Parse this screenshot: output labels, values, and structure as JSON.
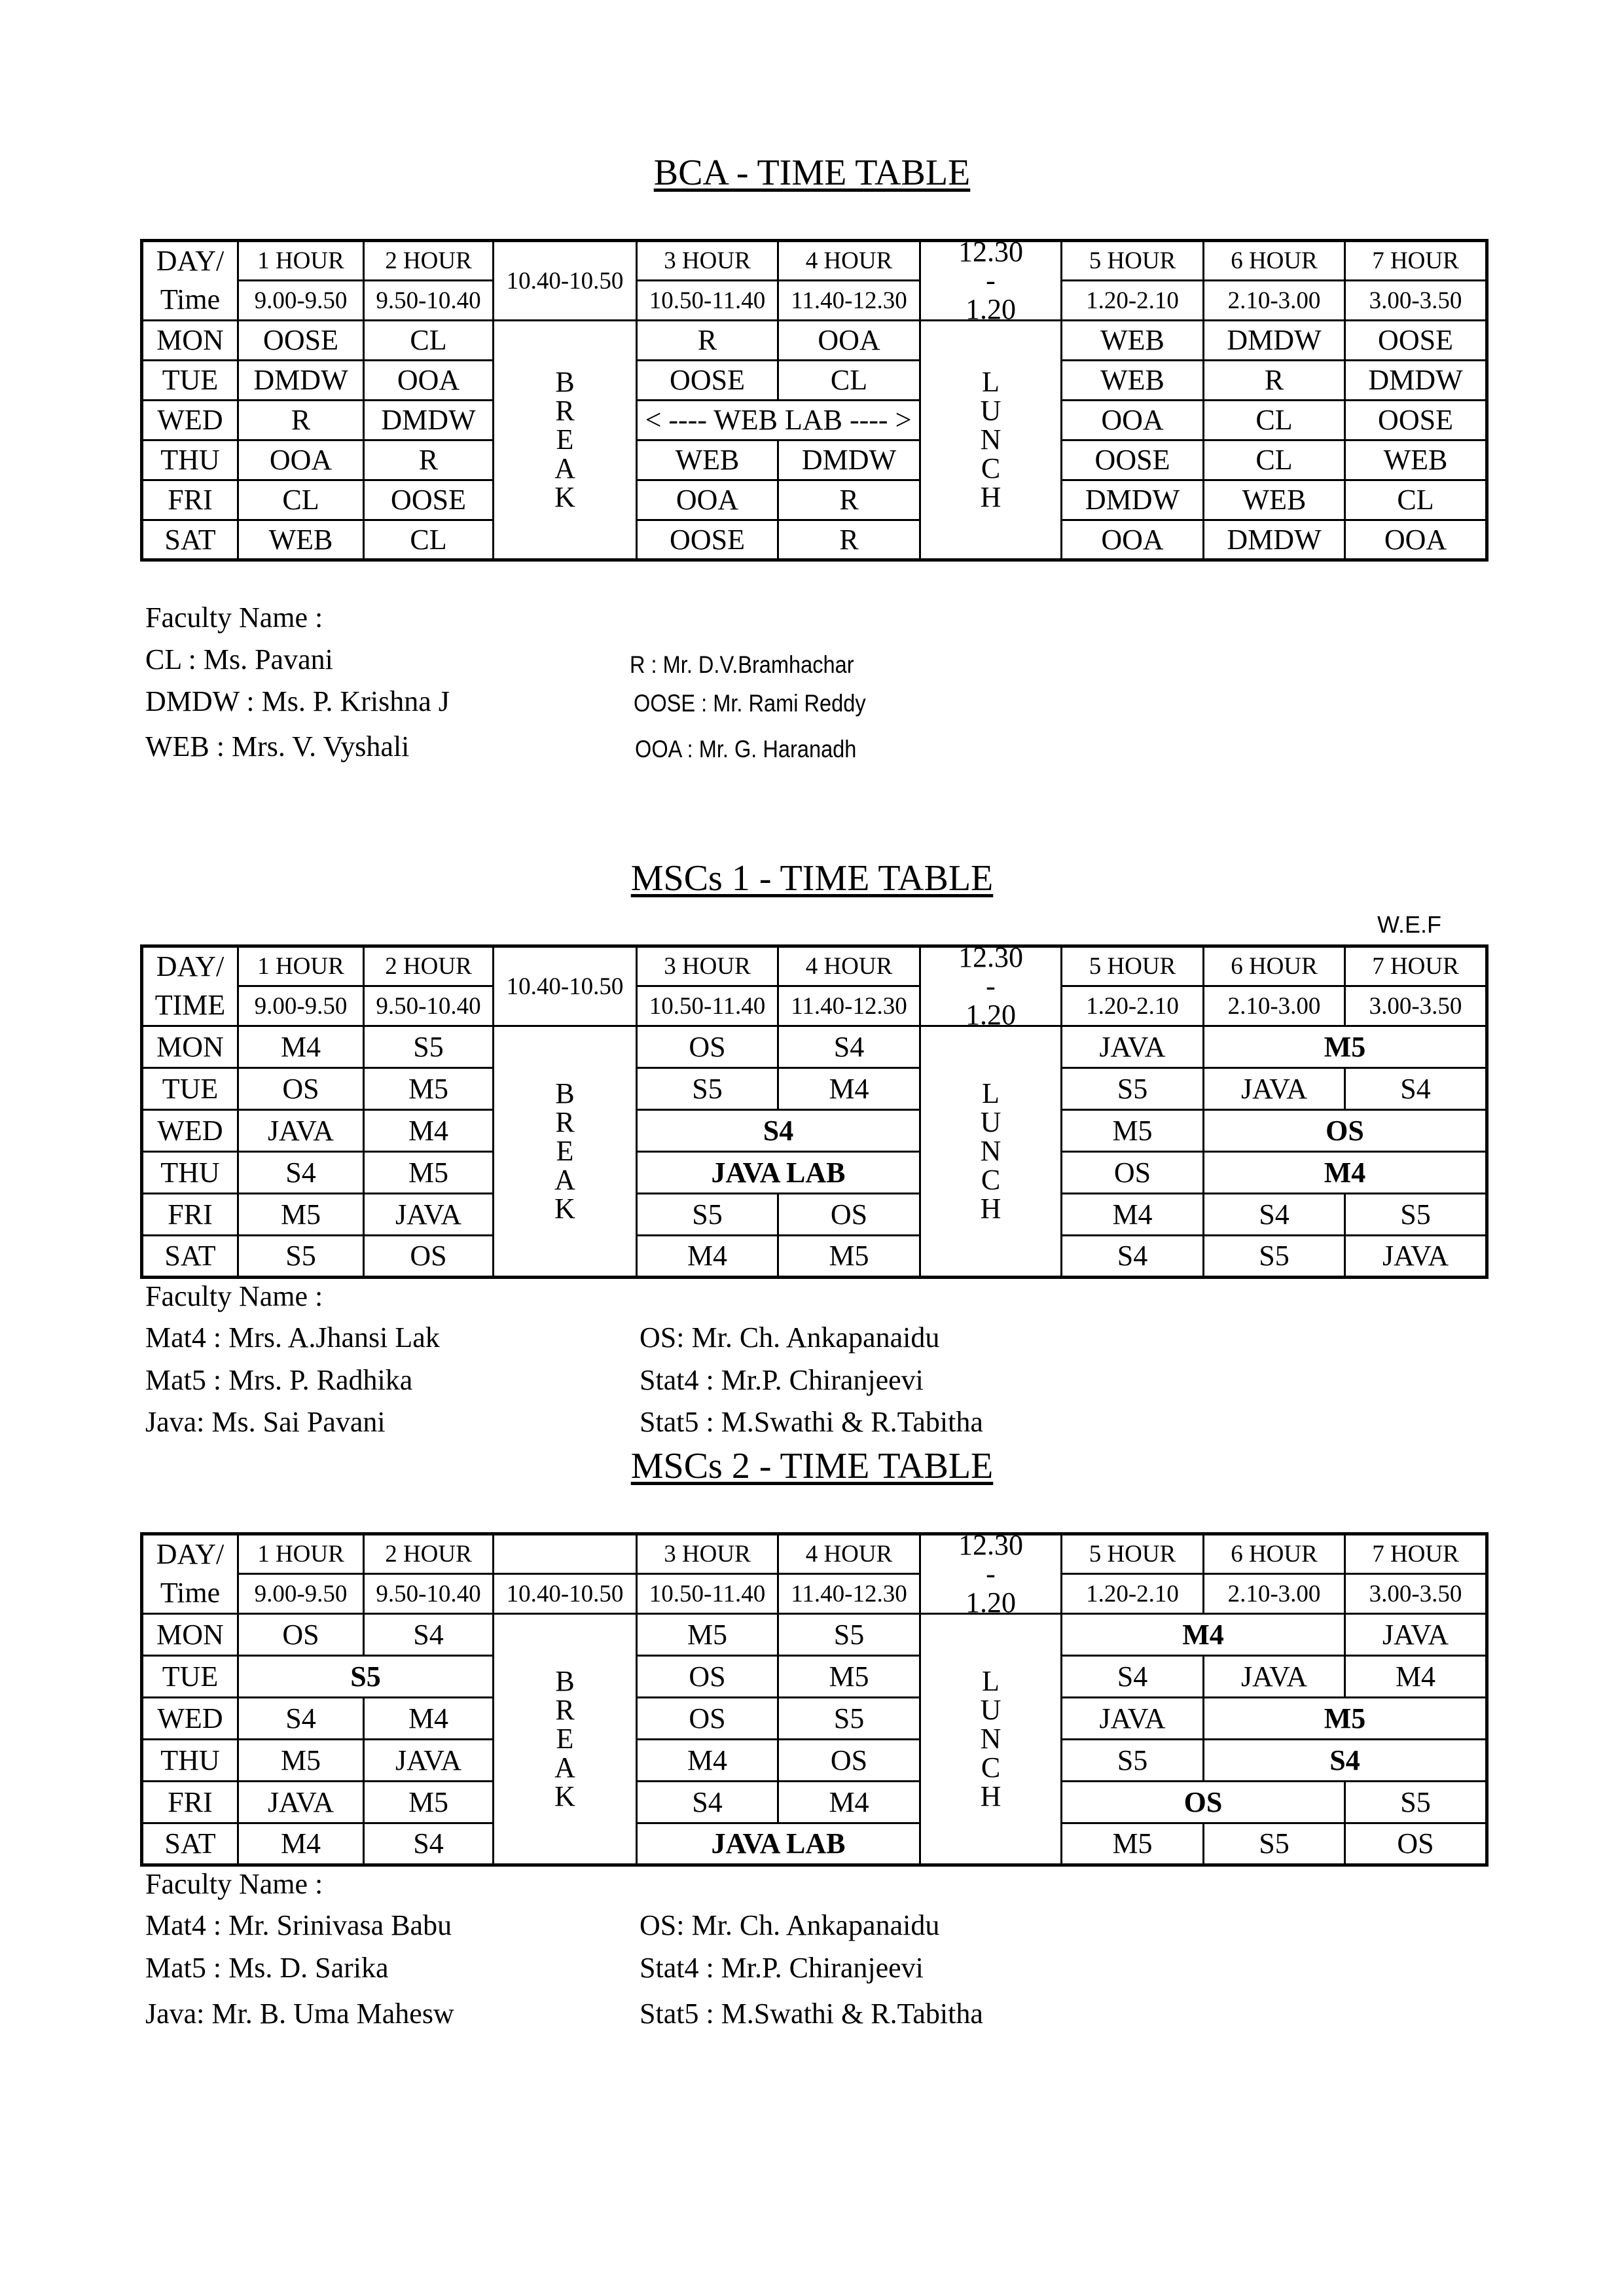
{
  "bca": {
    "title": "BCA - TIME TABLE",
    "header": {
      "day": "DAY/",
      "time": "Time",
      "hours": [
        "1 HOUR",
        "2 HOUR",
        "3 HOUR",
        "4 HOUR",
        "5 HOUR",
        "6 HOUR",
        "7 HOUR"
      ],
      "times": [
        "9.00-9.50",
        "9.50-10.40",
        "10.50-11.40",
        "11.40-12.30",
        "1.20-2.10",
        "2.10-3.00",
        "3.00-3.50"
      ],
      "break_time": "10.40-10.50",
      "lunch_time": [
        "12.30",
        "-",
        "1.20"
      ]
    },
    "break_letters": [
      "B",
      "R",
      "E",
      "A",
      "K"
    ],
    "lunch_letters": [
      "L",
      "U",
      "N",
      "C",
      "H"
    ],
    "rows": [
      {
        "day": "MON",
        "cells": [
          {
            "t": "OOSE"
          },
          {
            "t": "CL"
          },
          {
            "t": "R"
          },
          {
            "t": "OOA"
          },
          {
            "t": "WEB"
          },
          {
            "t": "DMDW"
          },
          {
            "t": "OOSE"
          }
        ]
      },
      {
        "day": "TUE",
        "cells": [
          {
            "t": "DMDW"
          },
          {
            "t": "OOA"
          },
          {
            "t": "OOSE"
          },
          {
            "t": "CL"
          },
          {
            "t": "WEB"
          },
          {
            "t": "R"
          },
          {
            "t": "DMDW"
          }
        ]
      },
      {
        "day": "WED",
        "cells": [
          {
            "t": "R"
          },
          {
            "t": "DMDW"
          },
          {
            "t": "< ---- WEB LAB ---- >",
            "span": 2
          },
          {
            "t": "OOA"
          },
          {
            "t": "CL"
          },
          {
            "t": "OOSE"
          }
        ]
      },
      {
        "day": "THU",
        "cells": [
          {
            "t": "OOA"
          },
          {
            "t": "R"
          },
          {
            "t": "WEB"
          },
          {
            "t": "DMDW"
          },
          {
            "t": "OOSE"
          },
          {
            "t": "CL"
          },
          {
            "t": "WEB"
          }
        ]
      },
      {
        "day": "FRI",
        "cells": [
          {
            "t": "CL"
          },
          {
            "t": "OOSE"
          },
          {
            "t": "OOA"
          },
          {
            "t": "R"
          },
          {
            "t": "DMDW"
          },
          {
            "t": "WEB"
          },
          {
            "t": "CL"
          }
        ]
      },
      {
        "day": "SAT",
        "cells": [
          {
            "t": "WEB"
          },
          {
            "t": "CL"
          },
          {
            "t": "OOSE"
          },
          {
            "t": "R"
          },
          {
            "t": "OOA"
          },
          {
            "t": "DMDW"
          },
          {
            "t": "OOA"
          }
        ]
      }
    ],
    "faculty_heading": "Faculty Name :",
    "faculty_left": [
      "CL : Ms. Pavani",
      "DMDW : Ms. P. Krishna J",
      "WEB : Mrs. V. Vyshali"
    ],
    "faculty_right": [
      "R : Mr. D.V.Bramhachar",
      "OOSE : Mr. Rami Reddy",
      "OOA : Mr. G. Haranadh"
    ]
  },
  "msc1": {
    "title": "MSCs 1 - TIME TABLE",
    "wef": "W.E.F",
    "header": {
      "day": "DAY/",
      "time": "TIME",
      "hours": [
        "1 HOUR",
        "2 HOUR",
        "3 HOUR",
        "4 HOUR",
        "5 HOUR",
        "6 HOUR",
        "7 HOUR"
      ],
      "times": [
        "9.00-9.50",
        "9.50-10.40",
        "10.50-11.40",
        "11.40-12.30",
        "1.20-2.10",
        "2.10-3.00",
        "3.00-3.50"
      ],
      "break_time": "10.40-10.50",
      "lunch_time": [
        "12.30",
        "-",
        "1.20"
      ]
    },
    "break_letters": [
      "B",
      "R",
      "E",
      "A",
      "K"
    ],
    "lunch_letters": [
      "L",
      "U",
      "N",
      "C",
      "H"
    ],
    "rows": [
      {
        "day": "MON",
        "cells": [
          {
            "t": "M4"
          },
          {
            "t": "S5"
          },
          {
            "t": "OS"
          },
          {
            "t": "S4"
          },
          {
            "t": "JAVA"
          },
          {
            "t": "M5",
            "span": 2,
            "bold": true
          }
        ]
      },
      {
        "day": "TUE",
        "cells": [
          {
            "t": "OS"
          },
          {
            "t": "M5"
          },
          {
            "t": "S5"
          },
          {
            "t": "M4"
          },
          {
            "t": "S5"
          },
          {
            "t": "JAVA"
          },
          {
            "t": "S4"
          }
        ]
      },
      {
        "day": "WED",
        "cells": [
          {
            "t": "JAVA"
          },
          {
            "t": "M4"
          },
          {
            "t": "S4",
            "span": 2,
            "bold": true
          },
          {
            "t": "M5"
          },
          {
            "t": "OS",
            "span": 2,
            "bold": true
          }
        ]
      },
      {
        "day": "THU",
        "cells": [
          {
            "t": "S4"
          },
          {
            "t": "M5"
          },
          {
            "t": "JAVA LAB",
            "span": 2,
            "bold": true
          },
          {
            "t": "OS"
          },
          {
            "t": "M4",
            "span": 2,
            "bold": true
          }
        ]
      },
      {
        "day": "FRI",
        "cells": [
          {
            "t": "M5"
          },
          {
            "t": "JAVA"
          },
          {
            "t": "S5"
          },
          {
            "t": "OS"
          },
          {
            "t": "M4"
          },
          {
            "t": "S4"
          },
          {
            "t": "S5"
          }
        ]
      },
      {
        "day": "SAT",
        "cells": [
          {
            "t": "S5"
          },
          {
            "t": "OS"
          },
          {
            "t": "M4"
          },
          {
            "t": "M5"
          },
          {
            "t": "S4"
          },
          {
            "t": "S5"
          },
          {
            "t": "JAVA"
          }
        ]
      }
    ],
    "faculty_heading": "Faculty Name :",
    "faculty_left": [
      "Mat4  : Mrs. A.Jhansi Lak",
      "Mat5 : Mrs. P. Radhika",
      "Java: Ms. Sai Pavani"
    ],
    "faculty_right": [
      "OS: Mr. Ch. Ankapanaidu",
      "Stat4 : Mr.P. Chiranjeevi",
      "Stat5 : M.Swathi & R.Tabitha"
    ]
  },
  "msc2": {
    "title": "MSCs 2 - TIME TABLE",
    "header": {
      "day": "DAY/",
      "time": "Time",
      "hours": [
        "1 HOUR",
        "2 HOUR",
        "3 HOUR",
        "4 HOUR",
        "5 HOUR",
        "6 HOUR",
        "7 HOUR"
      ],
      "times": [
        "9.00-9.50",
        "9.50-10.40",
        "10.50-11.40",
        "11.40-12.30",
        "1.20-2.10",
        "2.10-3.00",
        "3.00-3.50"
      ],
      "break_time": "10.40-10.50",
      "lunch_time": [
        "12.30",
        "-",
        "1.20"
      ]
    },
    "break_letters": [
      "B",
      "R",
      "E",
      "A",
      "K"
    ],
    "lunch_letters": [
      "L",
      "U",
      "N",
      "C",
      "H"
    ],
    "rows": [
      {
        "day": "MON",
        "cells": [
          {
            "t": "OS"
          },
          {
            "t": "S4"
          },
          {
            "t": "M5"
          },
          {
            "t": "S5"
          },
          {
            "t": "M4",
            "span": 2,
            "bold": true
          },
          {
            "t": "JAVA"
          }
        ]
      },
      {
        "day": "TUE",
        "cells": [
          {
            "t": "S5",
            "span": 2,
            "bold": true
          },
          {
            "t": "OS"
          },
          {
            "t": "M5"
          },
          {
            "t": "S4"
          },
          {
            "t": "JAVA"
          },
          {
            "t": "M4"
          }
        ]
      },
      {
        "day": "WED",
        "cells": [
          {
            "t": "S4"
          },
          {
            "t": "M4"
          },
          {
            "t": "OS"
          },
          {
            "t": "S5"
          },
          {
            "t": "JAVA"
          },
          {
            "t": "M5",
            "span": 2,
            "bold": true
          }
        ]
      },
      {
        "day": "THU",
        "cells": [
          {
            "t": "M5"
          },
          {
            "t": "JAVA"
          },
          {
            "t": "M4"
          },
          {
            "t": "OS"
          },
          {
            "t": "S5"
          },
          {
            "t": "S4",
            "span": 2,
            "bold": true
          }
        ]
      },
      {
        "day": "FRI",
        "cells": [
          {
            "t": "JAVA"
          },
          {
            "t": "M5"
          },
          {
            "t": "S4"
          },
          {
            "t": "M4"
          },
          {
            "t": "OS",
            "span": 2,
            "bold": true
          },
          {
            "t": "S5"
          }
        ]
      },
      {
        "day": "SAT",
        "cells": [
          {
            "t": "M4"
          },
          {
            "t": "S4"
          },
          {
            "t": "JAVA LAB",
            "span": 2,
            "bold": true
          },
          {
            "t": "M5"
          },
          {
            "t": "S5"
          },
          {
            "t": "OS"
          }
        ]
      }
    ],
    "faculty_heading": "Faculty Name :",
    "faculty_left": [
      "Mat4  : Mr. Srinivasa Babu",
      "Mat5 : Ms. D. Sarika",
      "Java: Mr. B. Uma Mahesw"
    ],
    "faculty_right": [
      "OS: Mr. Ch. Ankapanaidu",
      "Stat4 : Mr.P. Chiranjeevi",
      "Stat5 : M.Swathi & R.Tabitha"
    ]
  }
}
